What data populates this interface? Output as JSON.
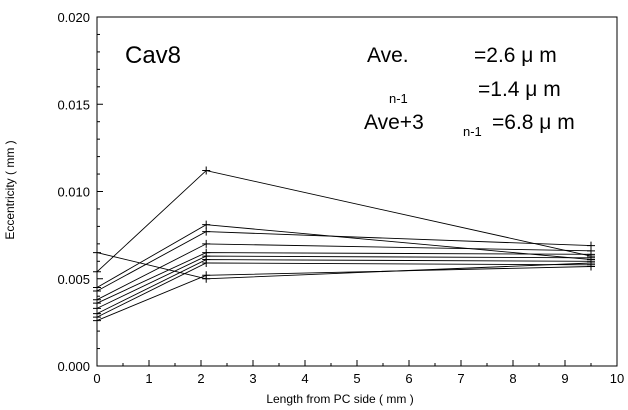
{
  "chart_data": {
    "type": "line",
    "xlabel": "Length from PC side ( mm )",
    "ylabel": "Eccentricity ( mm )",
    "xlim": [
      0,
      10
    ],
    "ylim": [
      0,
      0.02
    ],
    "x_ticks": [
      "0",
      "1",
      "2",
      "3",
      "4",
      "5",
      "6",
      "7",
      "8",
      "9",
      "10"
    ],
    "y_ticks": [
      "0.000",
      "0.005",
      "0.010",
      "0.015",
      "0.020"
    ],
    "grid": false,
    "legend": "none",
    "marker": "plus",
    "x": [
      0,
      2.1,
      9.5
    ],
    "series": [
      {
        "values": [
          0.0054,
          0.0112,
          0.0063
        ]
      },
      {
        "values": [
          0.0045,
          0.0081,
          0.0061
        ]
      },
      {
        "values": [
          0.0043,
          0.0077,
          0.0069
        ]
      },
      {
        "values": [
          0.0038,
          0.007,
          0.0066
        ]
      },
      {
        "values": [
          0.0036,
          0.0065,
          0.0064
        ]
      },
      {
        "values": [
          0.0033,
          0.0063,
          0.0062
        ]
      },
      {
        "values": [
          0.003,
          0.0061,
          0.006
        ]
      },
      {
        "values": [
          0.0028,
          0.0059,
          0.0058
        ]
      },
      {
        "values": [
          0.0026,
          0.0052,
          0.0057
        ]
      },
      {
        "values": [
          0.0065,
          0.005,
          0.0059
        ]
      }
    ],
    "annotations": {
      "cavity": "Cav8",
      "ave_label": "Ave.",
      "ave_value": "=2.6 μ m",
      "sigma_sub": "n-1",
      "sigma_value": "=1.4 μ m",
      "ave3_label": "Ave+3",
      "ave3_sub": "n-1",
      "ave3_value": "=6.8 μ m"
    }
  }
}
